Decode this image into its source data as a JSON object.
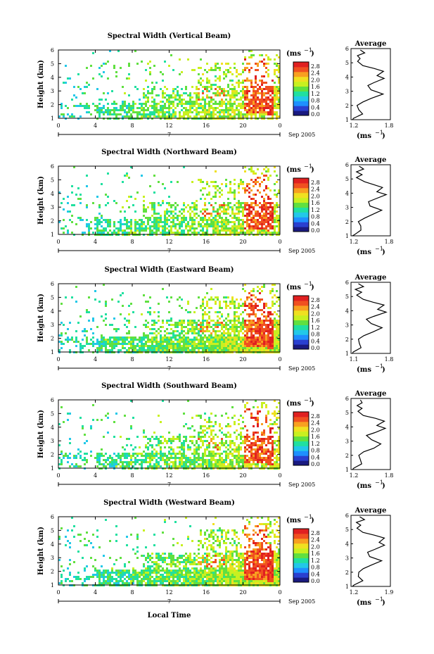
{
  "figure": {
    "xlabel": "Local Time",
    "date_label": "Sep 2005",
    "day_label": "7",
    "colorbar_unit": "(ms",
    "colorbar_unit_exp": "−1",
    "colorbar_ticks": [
      "2.8",
      "2.4",
      "2.0",
      "1.6",
      "1.2",
      "0.8",
      "0.4",
      "0.0"
    ],
    "x_ticks": [
      "0",
      "4",
      "8",
      "12",
      "16",
      "20",
      "0"
    ],
    "y_ticks": [
      "1",
      "2",
      "3",
      "4",
      "5",
      "6"
    ],
    "ylabel": "Height (km)",
    "avg_title": "Average",
    "avg_xlabel": "(ms",
    "avg_xlabel_exp": "−1"
  },
  "colors": {
    "colormap": [
      "#1a1a80",
      "#2a40d0",
      "#1e90ff",
      "#22c8e8",
      "#20e0a0",
      "#60e040",
      "#c8f020",
      "#f0e020",
      "#f8a020",
      "#f05020",
      "#e02020"
    ]
  },
  "chart_data": [
    {
      "type": "heatmap",
      "title": "Spectral Width (Vertical Beam)",
      "xlabel": "Local Time",
      "ylabel": "Height (km)",
      "xlim": [
        0,
        24
      ],
      "ylim": [
        1,
        6
      ],
      "colorbar_range": [
        0.0,
        2.8
      ],
      "average_profile": {
        "title": "Average",
        "xlim": [
          1.2,
          1.8
        ],
        "x_ticks": [
          "1.2",
          "1.8"
        ],
        "ylim": [
          1,
          6
        ]
      }
    },
    {
      "type": "heatmap",
      "title": "Spectral Width (Northward Beam)",
      "xlabel": "Local Time",
      "ylabel": "Height (km)",
      "xlim": [
        0,
        24
      ],
      "ylim": [
        1,
        6
      ],
      "colorbar_range": [
        0.0,
        2.8
      ],
      "average_profile": {
        "title": "Average",
        "xlim": [
          1.2,
          1.8
        ],
        "x_ticks": [
          "1.2",
          "1.8"
        ],
        "ylim": [
          1,
          6
        ]
      }
    },
    {
      "type": "heatmap",
      "title": "Spectral Width (Eastward Beam)",
      "xlabel": "Local Time",
      "ylabel": "Height (km)",
      "xlim": [
        0,
        24
      ],
      "ylim": [
        1,
        6
      ],
      "colorbar_range": [
        0.0,
        2.8
      ],
      "average_profile": {
        "title": "Average",
        "xlim": [
          1.1,
          1.8
        ],
        "x_ticks": [
          "1.1",
          "1.8"
        ],
        "ylim": [
          1,
          6
        ]
      }
    },
    {
      "type": "heatmap",
      "title": "Spectral Width (Southward Beam)",
      "xlabel": "Local Time",
      "ylabel": "Height (km)",
      "xlim": [
        0,
        24
      ],
      "ylim": [
        1,
        6
      ],
      "colorbar_range": [
        0.0,
        2.8
      ],
      "average_profile": {
        "title": "Average",
        "xlim": [
          1.2,
          1.8
        ],
        "x_ticks": [
          "1.2",
          "1.8"
        ],
        "ylim": [
          1,
          6
        ]
      }
    },
    {
      "type": "heatmap",
      "title": "Spectral Width (Westward Beam)",
      "xlabel": "Local Time",
      "ylabel": "Height (km)",
      "xlim": [
        0,
        24
      ],
      "ylim": [
        1,
        6
      ],
      "colorbar_range": [
        0.0,
        2.8
      ],
      "average_profile": {
        "title": "Average",
        "xlim": [
          1.2,
          1.9
        ],
        "x_ticks": [
          "1.2",
          "1.9"
        ],
        "ylim": [
          1,
          6
        ]
      }
    }
  ]
}
